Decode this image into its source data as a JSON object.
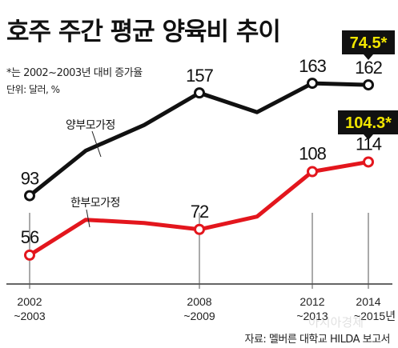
{
  "header": {
    "title": "호주 주간 평균 양육비 추이",
    "note": "*는 2002~2003년 대비 증가율",
    "unit_note": "단위: 달러, %"
  },
  "source": "자료: 멜버른 대학교 HILDA 보고서",
  "watermark": "아시아경제",
  "colors": {
    "two_parent": "#111111",
    "single_parent": "#e3161d",
    "callout_bg": "#111111",
    "callout_text": "#f2e600"
  },
  "chart_data": {
    "type": "line",
    "x": [
      0,
      1,
      2,
      3,
      4,
      5,
      6
    ],
    "x_tick_labels": [
      {
        "index": 0,
        "line1": "2002",
        "line2": "~2003"
      },
      {
        "index": 3,
        "line1": "2008",
        "line2": "~2009"
      },
      {
        "index": 5,
        "line1": "2012",
        "line2": "~2013"
      },
      {
        "index": 6,
        "line1": "2014",
        "line2": "~2015년"
      }
    ],
    "series": [
      {
        "name": "양부모가정",
        "values": [
          93,
          121,
          137,
          157,
          145,
          163,
          162
        ],
        "labeled_points": [
          {
            "index": 0,
            "label": "93"
          },
          {
            "index": 3,
            "label": "157"
          },
          {
            "index": 5,
            "label": "163"
          },
          {
            "index": 6,
            "label": "162"
          }
        ],
        "callout": "74.5*"
      },
      {
        "name": "한부모가정",
        "values": [
          56,
          78,
          76,
          72,
          80,
          108,
          114
        ],
        "labeled_points": [
          {
            "index": 0,
            "label": "56"
          },
          {
            "index": 3,
            "label": "72"
          },
          {
            "index": 5,
            "label": "108"
          },
          {
            "index": 6,
            "label": "114"
          }
        ],
        "callout": "104.3*"
      }
    ],
    "ylim": [
      38,
      175
    ],
    "grid": false,
    "legend": "inline labels"
  }
}
